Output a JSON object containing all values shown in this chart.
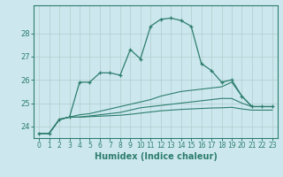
{
  "title": "",
  "xlabel": "Humidex (Indice chaleur)",
  "bg_color": "#cce8ee",
  "line_color": "#2e7d6e",
  "grid_color": "#b0cccc",
  "xlim": [
    -0.5,
    23.5
  ],
  "ylim": [
    23.5,
    29.2
  ],
  "yticks": [
    24,
    25,
    26,
    27,
    28
  ],
  "xticks": [
    0,
    1,
    2,
    3,
    4,
    5,
    6,
    7,
    8,
    9,
    10,
    11,
    12,
    13,
    14,
    15,
    16,
    17,
    18,
    19,
    20,
    21,
    22,
    23
  ],
  "line1_x": [
    0,
    1,
    2,
    3,
    4,
    5,
    6,
    7,
    8,
    9,
    10,
    11,
    12,
    13,
    14,
    15,
    16,
    17,
    18,
    19,
    20,
    21,
    22,
    23
  ],
  "line1_y": [
    23.7,
    23.7,
    24.3,
    24.4,
    25.9,
    25.9,
    26.3,
    26.3,
    26.2,
    27.3,
    26.9,
    28.3,
    28.6,
    28.65,
    28.55,
    28.3,
    26.7,
    26.4,
    25.9,
    26.0,
    25.3,
    24.85,
    24.85,
    24.85
  ],
  "line2_x": [
    0,
    1,
    2,
    3,
    4,
    5,
    6,
    7,
    8,
    9,
    10,
    11,
    12,
    13,
    14,
    15,
    16,
    17,
    18,
    19,
    20,
    21,
    22,
    23
  ],
  "line2_y": [
    23.7,
    23.7,
    24.3,
    24.4,
    24.5,
    24.55,
    24.65,
    24.75,
    24.85,
    24.95,
    25.05,
    25.15,
    25.3,
    25.4,
    25.5,
    25.55,
    25.6,
    25.65,
    25.7,
    25.9,
    25.3,
    24.85,
    24.85,
    24.85
  ],
  "line3_x": [
    0,
    1,
    2,
    3,
    4,
    5,
    6,
    7,
    8,
    9,
    10,
    11,
    12,
    13,
    14,
    15,
    16,
    17,
    18,
    19,
    20,
    21,
    22,
    23
  ],
  "line3_y": [
    23.7,
    23.7,
    24.3,
    24.4,
    24.4,
    24.45,
    24.5,
    24.55,
    24.6,
    24.7,
    24.8,
    24.85,
    24.9,
    24.95,
    25.0,
    25.05,
    25.1,
    25.15,
    25.2,
    25.2,
    25.0,
    24.85,
    24.85,
    24.85
  ],
  "line4_x": [
    0,
    1,
    2,
    3,
    4,
    5,
    6,
    7,
    8,
    9,
    10,
    11,
    12,
    13,
    14,
    15,
    16,
    17,
    18,
    19,
    20,
    21,
    22,
    23
  ],
  "line4_y": [
    23.7,
    23.7,
    24.3,
    24.4,
    24.4,
    24.42,
    24.44,
    24.46,
    24.48,
    24.52,
    24.57,
    24.62,
    24.67,
    24.7,
    24.73,
    24.75,
    24.77,
    24.79,
    24.8,
    24.82,
    24.75,
    24.7,
    24.7,
    24.7
  ]
}
